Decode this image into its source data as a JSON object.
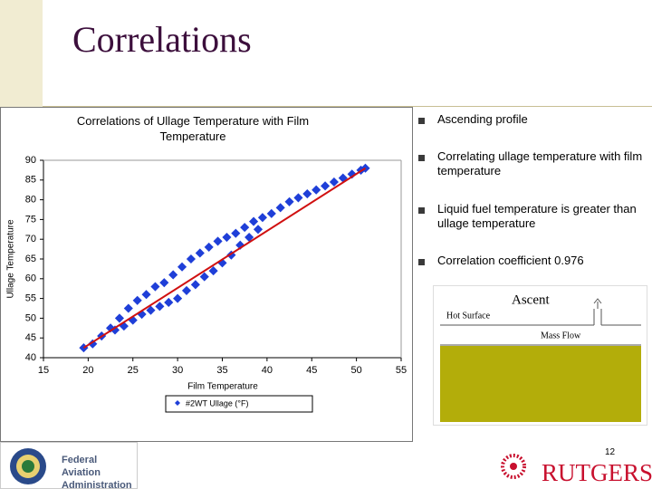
{
  "slide_title": "Correlations",
  "chart_data": {
    "type": "scatter",
    "title": "Correlations of Ullage Temperature with Film Temperature",
    "x_label": "Film Temperature",
    "y_label": "Ullage Temperature",
    "xlim": [
      15,
      55
    ],
    "xticks": [
      15,
      20,
      25,
      30,
      35,
      40,
      45,
      50,
      55
    ],
    "ylim": [
      40,
      90
    ],
    "yticks": [
      40,
      45,
      50,
      55,
      60,
      65,
      70,
      75,
      80,
      85,
      90
    ],
    "grid": false,
    "series": [
      {
        "name": "#2WT Ullage (°F)",
        "color": "#1f3fd8",
        "x": [
          19.5,
          20.5,
          21.5,
          22.5,
          23.5,
          24.5,
          25.5,
          26.5,
          27.5,
          28.5,
          29.5,
          30.5,
          31.5,
          32.5,
          33.5,
          34.5,
          35.5,
          36.5,
          37.5,
          38.5,
          39.5,
          40.5,
          41.5,
          42.5,
          43.5,
          44.5,
          45.5,
          46.5,
          47.5,
          48.5,
          49.5,
          50.5,
          51,
          23,
          24,
          25,
          26,
          27,
          28,
          29,
          30,
          31,
          32,
          33,
          34,
          35,
          36,
          37,
          38,
          39
        ],
        "values": [
          42.5,
          43.5,
          45.5,
          47.5,
          50,
          52.5,
          54.5,
          56,
          58,
          59,
          61,
          63,
          65,
          66.5,
          68,
          69.5,
          70.5,
          71.5,
          73,
          74.5,
          75.5,
          76.5,
          78,
          79.5,
          80.5,
          81.5,
          82.5,
          83.5,
          84.5,
          85.5,
          86.5,
          87.5,
          88,
          47,
          48,
          49.5,
          51,
          52,
          53,
          54,
          55,
          57,
          58.5,
          60.5,
          62,
          64,
          66,
          68.5,
          70.5,
          72.5
        ]
      }
    ],
    "trendline": {
      "color": "#d01010",
      "x": [
        19.5,
        51
      ],
      "values": [
        42.5,
        88
      ]
    }
  },
  "bullets": [
    "Ascending profile",
    "Correlating ullage temperature with film temperature",
    "Liquid fuel temperature is greater than ullage temperature",
    "Correlation coefficient 0.976"
  ],
  "diagram": {
    "title": "Ascent",
    "labels": [
      "Hot Surface",
      "Mass Flow"
    ]
  },
  "footer": {
    "agency": [
      "Federal Aviation",
      "Administration"
    ],
    "page_number": 12,
    "university": "RUTGERS"
  }
}
